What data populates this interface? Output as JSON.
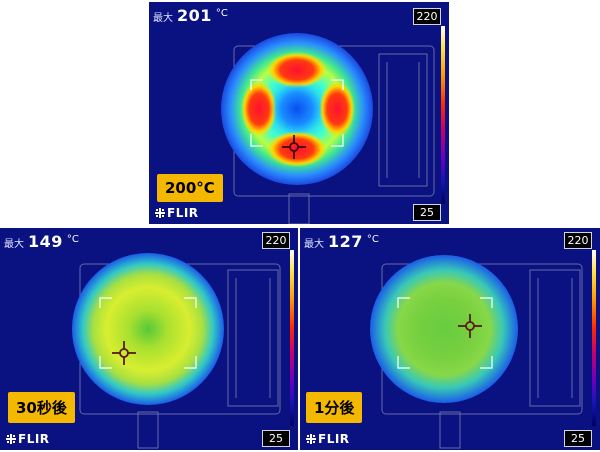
{
  "panels": [
    {
      "id": "top",
      "max_label": "最大",
      "max_value": "201",
      "unit": "°C",
      "scale_high": "220",
      "scale_low": "25",
      "tag": "200°C",
      "logo": "FLIR"
    },
    {
      "id": "bottom-left",
      "max_label": "最大",
      "max_value": "149",
      "unit": "°C",
      "scale_high": "220",
      "scale_low": "25",
      "tag": "30秒後",
      "logo": "FLIR"
    },
    {
      "id": "bottom-right",
      "max_label": "最大",
      "max_value": "127",
      "unit": "°C",
      "scale_high": "220",
      "scale_low": "25",
      "tag": "1分後",
      "logo": "FLIR"
    }
  ],
  "colors": {
    "background": "#0a1180",
    "tag": "#f5b800",
    "text": "#ffffff"
  },
  "icons": [
    "crosshair-icon",
    "flir-logo-icon",
    "temperature-scale-bar"
  ]
}
